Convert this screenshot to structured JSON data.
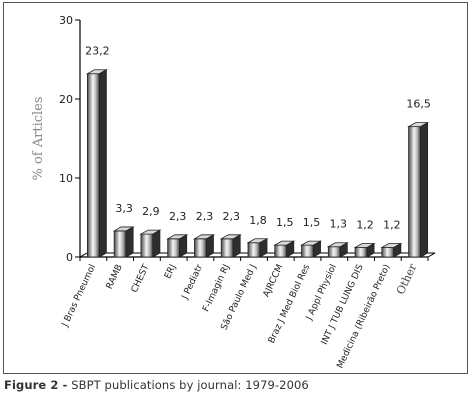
{
  "caption": {
    "prefix": "Figure 2 -",
    "text": " SBPT publications by journal: 1979-2006"
  },
  "chart_data": {
    "type": "bar",
    "title": "",
    "xlabel": "",
    "ylabel": "% of Articles",
    "ylim": [
      0,
      30
    ],
    "yticks": [
      "0",
      "10",
      "20",
      "30"
    ],
    "grid": false,
    "legend": "none",
    "categories": [
      "J Bras Pneumol",
      "RAMB",
      "CHEST",
      "ERJ",
      "J Pediatr",
      "F-Imagin RJ",
      "São Paulo Med J",
      "AJRCCM",
      "Braz J Med Biol Res",
      "J Appl Physiol",
      "INT J TUB LUNG DIS",
      "Medicina (Ribeirão Preto)",
      "Other"
    ],
    "values": [
      23.2,
      3.3,
      2.9,
      2.3,
      2.3,
      2.3,
      1.8,
      1.5,
      1.5,
      1.3,
      1.2,
      1.2,
      16.5
    ],
    "data_labels": [
      "23,2",
      "3,3",
      "2,9",
      "2,3",
      "2,3",
      "2,3",
      "1,8",
      "1,5",
      "1,5",
      "1,3",
      "1,2",
      "1,2",
      "16,5"
    ],
    "bar_color": "#9a9a9a"
  }
}
